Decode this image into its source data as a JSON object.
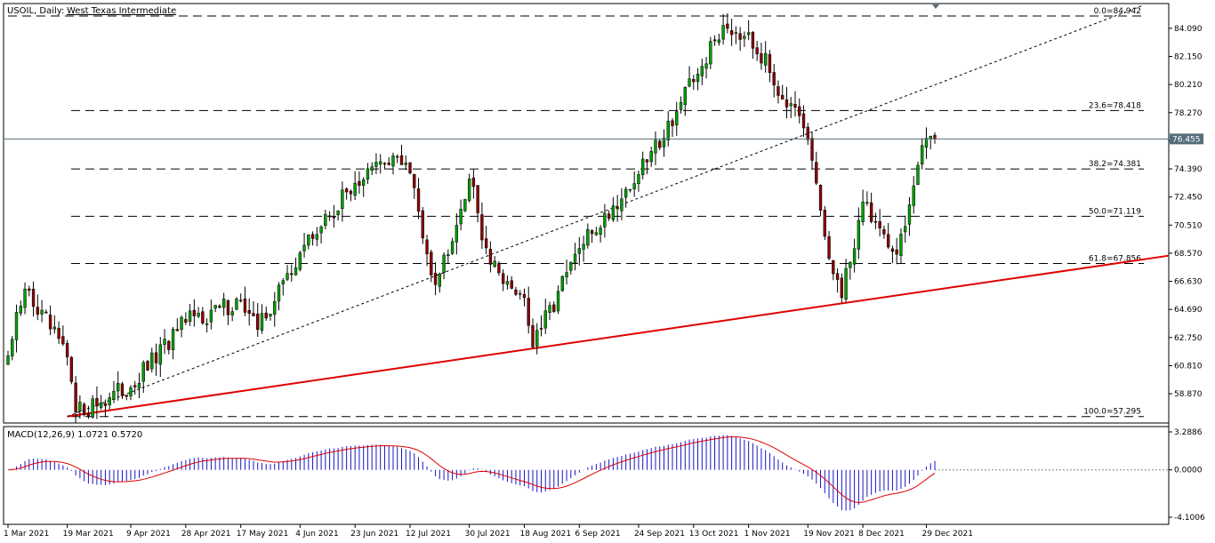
{
  "header": {
    "symbol_label": "USOIL, Daily:",
    "instrument_name": "West Texas Intermediate"
  },
  "macd_panel": {
    "label": "MACD(12,26,9) 1.0721 0.5720"
  },
  "current_price_label": "76.455",
  "colors": {
    "bull": "#00a000",
    "bear": "#8b0000",
    "trendline": "#e00000",
    "histogram": "#1515c8",
    "signal": "#e00000",
    "price_line": "#546e7a",
    "price_label_bg": "#546e7a"
  },
  "chart_data": {
    "type": "candlestick",
    "title": "USOIL, Daily: West Texas Intermediate",
    "price_axis_ticks": [
      "84.090",
      "82.150",
      "80.210",
      "78.270",
      "76.330",
      "74.390",
      "72.450",
      "70.510",
      "68.570",
      "66.630",
      "64.690",
      "62.750",
      "60.810",
      "58.870"
    ],
    "price_range": [
      56.85,
      85.8
    ],
    "x_tick_labels": [
      "1 Mar 2021",
      "19 Mar 2021",
      "9 Apr 2021",
      "28 Apr 2021",
      "17 May 2021",
      "4 Jun 2021",
      "23 Jun 2021",
      "12 Jul 2021",
      "30 Jul 2021",
      "18 Aug 2021",
      "6 Sep 2021",
      "24 Sep 2021",
      "13 Oct 2021",
      "1 Nov 2021",
      "19 Nov 2021",
      "8 Dec 2021",
      "29 Dec 2021"
    ],
    "current_price": 76.455,
    "fibonacci_levels": [
      {
        "label": "0.0=84.942",
        "value": 84.942
      },
      {
        "label": "23.6=78.418",
        "value": 78.418
      },
      {
        "label": "38.2=74.381",
        "value": 74.381
      },
      {
        "label": "50.0=71.119",
        "value": 71.119
      },
      {
        "label": "61.8=67.856",
        "value": 67.856
      },
      {
        "label": "100.0=57.295",
        "value": 57.295
      }
    ],
    "trendlines": [
      {
        "style": "solid",
        "color": "red",
        "from": {
          "date": "19 Mar 2021",
          "price": 57.3
        },
        "to": {
          "date": "beyond 29 Dec 2021",
          "price": 68.4
        }
      },
      {
        "style": "dotted",
        "color": "black",
        "from": {
          "date": "19 Mar 2021",
          "price": 57.3
        },
        "to": {
          "date": "beyond 29 Dec 2021",
          "price": 85.7
        }
      }
    ],
    "anchors": [
      {
        "label": "1 Mar 2021",
        "close": 61.5
      },
      {
        "label": "5 Mar 2021",
        "close": 66.1
      },
      {
        "label": "19 Mar 2021",
        "close": 61.4
      },
      {
        "label": "23 Mar 2021",
        "close": 57.6
      },
      {
        "label": "9 Apr 2021",
        "close": 59.3
      },
      {
        "label": "28 Apr 2021",
        "close": 63.8
      },
      {
        "label": "17 May 2021",
        "close": 65.3
      },
      {
        "label": "21 May 2021",
        "close": 63.3
      },
      {
        "label": "4 Jun 2021",
        "close": 68.6
      },
      {
        "label": "23 Jun 2021",
        "close": 73.4
      },
      {
        "label": "6 Jul 2021",
        "close": 75.3
      },
      {
        "label": "12 Jul 2021",
        "close": 74.1
      },
      {
        "label": "20 Jul 2021",
        "close": 66.4
      },
      {
        "label": "30 Jul 2021",
        "close": 73.7
      },
      {
        "label": "6 Aug 2021",
        "close": 67.8
      },
      {
        "label": "18 Aug 2021",
        "close": 65.5
      },
      {
        "label": "20 Aug 2021",
        "close": 62.1
      },
      {
        "label": "6 Sep 2021",
        "close": 68.9
      },
      {
        "label": "24 Sep 2021",
        "close": 74.0
      },
      {
        "label": "13 Oct 2021",
        "close": 80.4
      },
      {
        "label": "22 Oct 2021",
        "close": 84.3
      },
      {
        "label": "1 Nov 2021",
        "close": 83.8
      },
      {
        "label": "19 Nov 2021",
        "close": 76.4
      },
      {
        "label": "26 Nov 2021",
        "close": 68.2
      },
      {
        "label": "1 Dec 2021",
        "close": 65.5
      },
      {
        "label": "8 Dec 2021",
        "close": 72.1
      },
      {
        "label": "20 Dec 2021",
        "close": 68.5
      },
      {
        "label": "29 Dec 2021",
        "close": 76.5
      },
      {
        "label": "3 Jan 2022",
        "close": 76.455
      }
    ],
    "macd": {
      "params": "12,26,9",
      "macd_value": 1.0721,
      "signal_value": 0.572,
      "axis_ticks": [
        "3.2886",
        "0.0000",
        "-4.1006"
      ],
      "range": [
        -4.1006,
        3.2886
      ]
    }
  }
}
